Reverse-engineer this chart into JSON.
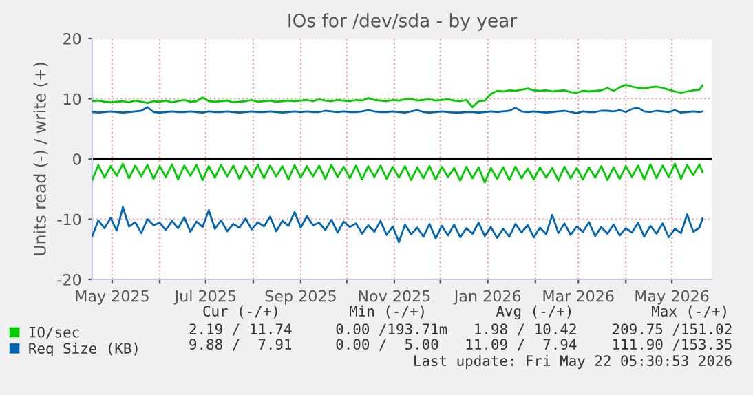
{
  "chart_data": {
    "type": "line",
    "title": "IOs for /dev/sda - by year",
    "ylabel": "Units read (-) / write (+)",
    "x": [
      "2025-04-18",
      "2025-04-22",
      "2025-04-26",
      "2025-04-30",
      "2025-05-04",
      "2025-05-08",
      "2025-05-12",
      "2025-05-16",
      "2025-05-20",
      "2025-05-24",
      "2025-05-28",
      "2025-06-01",
      "2025-06-05",
      "2025-06-09",
      "2025-06-13",
      "2025-06-17",
      "2025-06-21",
      "2025-06-25",
      "2025-06-29",
      "2025-07-03",
      "2025-07-07",
      "2025-07-11",
      "2025-07-15",
      "2025-07-19",
      "2025-07-23",
      "2025-07-27",
      "2025-07-31",
      "2025-08-04",
      "2025-08-08",
      "2025-08-12",
      "2025-08-16",
      "2025-08-20",
      "2025-08-24",
      "2025-08-28",
      "2025-09-01",
      "2025-09-05",
      "2025-09-09",
      "2025-09-13",
      "2025-09-17",
      "2025-09-21",
      "2025-09-25",
      "2025-09-29",
      "2025-10-03",
      "2025-10-07",
      "2025-10-11",
      "2025-10-15",
      "2025-10-19",
      "2025-10-23",
      "2025-10-27",
      "2025-10-31",
      "2025-11-04",
      "2025-11-08",
      "2025-11-12",
      "2025-11-16",
      "2025-11-20",
      "2025-11-24",
      "2025-11-28",
      "2025-12-02",
      "2025-12-06",
      "2025-12-10",
      "2025-12-14",
      "2025-12-18",
      "2025-12-22",
      "2025-12-26",
      "2025-12-30",
      "2026-01-03",
      "2026-01-07",
      "2026-01-11",
      "2026-01-15",
      "2026-01-19",
      "2026-01-23",
      "2026-01-27",
      "2026-01-31",
      "2026-02-04",
      "2026-02-08",
      "2026-02-12",
      "2026-02-16",
      "2026-02-20",
      "2026-02-24",
      "2026-02-28",
      "2026-03-04",
      "2026-03-08",
      "2026-03-12",
      "2026-03-16",
      "2026-03-20",
      "2026-03-24",
      "2026-03-28",
      "2026-04-01",
      "2026-04-05",
      "2026-04-09",
      "2026-04-13",
      "2026-04-17",
      "2026-04-21",
      "2026-04-25",
      "2026-04-29",
      "2026-05-03",
      "2026-05-07",
      "2026-05-11",
      "2026-05-15",
      "2026-05-19",
      "2026-05-21"
    ],
    "series": [
      {
        "name": "IO/sec",
        "color": "#00cc00",
        "values": [
          9.6,
          9.7,
          9.5,
          9.4,
          9.5,
          9.6,
          9.4,
          9.7,
          9.5,
          9.3,
          9.6,
          9.5,
          9.7,
          9.4,
          9.6,
          9.8,
          9.5,
          9.6,
          10.2,
          9.6,
          9.5,
          9.6,
          9.7,
          9.4,
          9.5,
          9.6,
          9.8,
          9.5,
          9.6,
          9.7,
          9.5,
          9.6,
          9.7,
          9.6,
          9.7,
          9.8,
          9.6,
          9.9,
          9.7,
          9.6,
          9.8,
          9.7,
          9.6,
          9.8,
          9.7,
          10.1,
          9.8,
          9.7,
          9.6,
          9.8,
          9.7,
          9.9,
          10,
          9.7,
          9.8,
          9.9,
          9.7,
          9.8,
          9.9,
          9.7,
          9.6,
          9.8,
          8.6,
          9.6,
          9.7,
          10.8,
          11.3,
          11.2,
          11.4,
          11.3,
          11.5,
          11.7,
          11.4,
          11.3,
          11.4,
          11.2,
          11.3,
          11.4,
          11.1,
          11.0,
          11.3,
          11.2,
          11.3,
          11.4,
          11.8,
          11.3,
          11.9,
          12.3,
          12.0,
          11.8,
          11.7,
          11.9,
          12.0,
          11.8,
          11.5,
          11.2,
          11.0,
          11.2,
          11.4,
          11.5,
          12.2
        ]
      },
      {
        "color": "#00cc00",
        "values": [
          -3.5,
          -1.0,
          -3.1,
          -1.2,
          -2.8,
          -0.8,
          -3.2,
          -1.1,
          -2.9,
          -1.0,
          -3.3,
          -1.2,
          -3.0,
          -0.9,
          -3.4,
          -1.1,
          -2.8,
          -1.0,
          -3.5,
          -1.2,
          -3.1,
          -1.0,
          -2.9,
          -1.1,
          -3.3,
          -1.2,
          -3.0,
          -1.0,
          -3.2,
          -1.1,
          -2.9,
          -1.2,
          -3.4,
          -1.0,
          -3.1,
          -1.2,
          -2.9,
          -1.1,
          -3.3,
          -1.0,
          -3.0,
          -1.3,
          -3.2,
          -1.1,
          -3.4,
          -1.2,
          -3.0,
          -1.1,
          -3.3,
          -1.3,
          -3.1,
          -1.2,
          -3.5,
          -1.4,
          -3.2,
          -1.2,
          -3.4,
          -1.3,
          -3.0,
          -1.5,
          -3.6,
          -1.3,
          -3.2,
          -1.4,
          -3.9,
          -1.5,
          -3.3,
          -1.4,
          -3.5,
          -1.3,
          -3.2,
          -1.6,
          -3.4,
          -1.4,
          -3.1,
          -1.5,
          -3.6,
          -1.3,
          -3.2,
          -1.5,
          -3.4,
          -1.4,
          -3.1,
          -1.2,
          -3.5,
          -1.4,
          -3.3,
          -1.2,
          -3.0,
          -1.1,
          -3.4,
          -0.9,
          -3.2,
          -1.1,
          -3.0,
          -0.8,
          -3.3,
          -1.0,
          -2.7,
          -0.9,
          -2.2
        ]
      },
      {
        "name": "Req Size (KB)",
        "color": "#0066b3",
        "values": [
          7.8,
          7.7,
          7.8,
          7.9,
          7.8,
          7.7,
          7.8,
          7.9,
          8.0,
          8.6,
          7.8,
          7.7,
          7.8,
          7.9,
          7.8,
          7.8,
          7.9,
          7.8,
          7.7,
          7.9,
          7.8,
          7.8,
          7.9,
          7.8,
          7.7,
          7.8,
          7.9,
          7.8,
          7.8,
          7.9,
          7.8,
          7.7,
          7.8,
          7.9,
          7.8,
          7.9,
          7.8,
          7.8,
          8.0,
          7.9,
          7.8,
          7.9,
          7.8,
          7.8,
          7.9,
          8.1,
          7.9,
          7.8,
          7.8,
          7.9,
          7.8,
          7.7,
          7.9,
          8.1,
          7.8,
          7.7,
          7.8,
          7.9,
          7.8,
          7.7,
          7.7,
          7.8,
          7.8,
          7.7,
          7.8,
          7.9,
          7.8,
          7.9,
          8.0,
          8.5,
          7.9,
          7.8,
          7.9,
          7.8,
          7.7,
          7.8,
          7.9,
          8.0,
          7.8,
          7.6,
          7.9,
          7.8,
          7.8,
          8.0,
          8.0,
          7.9,
          8.1,
          7.8,
          8.3,
          8.5,
          7.9,
          7.8,
          8.0,
          7.9,
          7.8,
          8.1,
          7.7,
          7.8,
          7.9,
          7.8,
          7.9
        ]
      },
      {
        "color": "#0066b3",
        "values": [
          -12.8,
          -10.2,
          -11.5,
          -9.8,
          -11.9,
          -8.0,
          -11.2,
          -10.5,
          -12.3,
          -10.0,
          -11.0,
          -10.6,
          -11.8,
          -10.3,
          -11.5,
          -9.7,
          -12.1,
          -10.4,
          -11.3,
          -8.5,
          -11.6,
          -10.2,
          -12.0,
          -10.8,
          -11.4,
          -9.9,
          -11.7,
          -10.5,
          -11.2,
          -9.6,
          -12.0,
          -10.3,
          -11.1,
          -8.8,
          -11.4,
          -9.5,
          -11.0,
          -10.6,
          -11.8,
          -10.1,
          -12.2,
          -10.4,
          -11.3,
          -10.7,
          -12.4,
          -11.0,
          -12.1,
          -10.3,
          -12.6,
          -11.2,
          -13.8,
          -10.9,
          -12.5,
          -11.4,
          -12.9,
          -10.8,
          -13.2,
          -11.1,
          -12.7,
          -10.9,
          -13.0,
          -11.5,
          -12.4,
          -10.6,
          -12.8,
          -11.3,
          -13.1,
          -11.6,
          -12.9,
          -10.8,
          -12.2,
          -11.0,
          -13.0,
          -11.4,
          -12.5,
          -9.3,
          -12.3,
          -10.7,
          -12.6,
          -11.2,
          -12.1,
          -10.5,
          -12.8,
          -11.3,
          -12.4,
          -10.9,
          -12.7,
          -11.5,
          -12.2,
          -10.6,
          -12.9,
          -11.1,
          -12.4,
          -10.7,
          -13.0,
          -11.6,
          -12.3,
          -9.2,
          -12.1,
          -11.4,
          -9.9
        ]
      }
    ],
    "xlim": [
      "2025-04-18",
      "2026-05-27"
    ],
    "xticks": [
      {
        "value": "2025-05-01",
        "label": "May 2025"
      },
      {
        "value": "2025-06-01",
        "label": null
      },
      {
        "value": "2025-07-01",
        "label": "Jul 2025"
      },
      {
        "value": "2025-08-01",
        "label": null
      },
      {
        "value": "2025-09-01",
        "label": "Sep 2025"
      },
      {
        "value": "2025-10-01",
        "label": null
      },
      {
        "value": "2025-11-01",
        "label": "Nov 2025"
      },
      {
        "value": "2025-12-01",
        "label": null
      },
      {
        "value": "2026-01-01",
        "label": "Jan 2026"
      },
      {
        "value": "2026-02-01",
        "label": null
      },
      {
        "value": "2026-03-01",
        "label": "Mar 2026"
      },
      {
        "value": "2026-04-01",
        "label": null
      },
      {
        "value": "2026-05-01",
        "label": "May 2026"
      }
    ],
    "ylim": [
      -20,
      20
    ],
    "yticks": [
      -20,
      -10,
      0,
      10,
      20
    ],
    "ref_lines": [
      {
        "axis": "y",
        "value": 0,
        "color": "#000000"
      }
    ],
    "grid": true,
    "legend": "bottom",
    "marker": "none",
    "line_style": "solid",
    "annotations": [
      "Cur (-/+)        Min (-/+)        Avg (-/+)         Max (-/+)",
      "2.19 / 11.74     0.00 /193.71m   1.98 / 10.42    209.75 /151.02",
      "9.88 /  7.91     0.00 /  5.00   11.09 /  7.94    111.90 /153.35",
      "Last update: Fri May 22 05:30:53 2026"
    ]
  }
}
